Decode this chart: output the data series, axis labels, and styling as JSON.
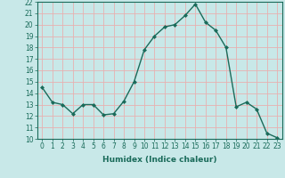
{
  "x": [
    0,
    1,
    2,
    3,
    4,
    5,
    6,
    7,
    8,
    9,
    10,
    11,
    12,
    13,
    14,
    15,
    16,
    17,
    18,
    19,
    20,
    21,
    22,
    23
  ],
  "y": [
    14.5,
    13.2,
    13.0,
    12.2,
    13.0,
    13.0,
    12.1,
    12.2,
    13.3,
    15.0,
    17.8,
    19.0,
    19.8,
    20.0,
    20.8,
    21.8,
    20.2,
    19.5,
    18.0,
    12.8,
    13.2,
    12.6,
    10.5,
    10.1
  ],
  "line_color": "#1a6b5a",
  "marker": "D",
  "marker_size": 2.0,
  "bg_color": "#c8e8e8",
  "grid_color": "#e8b0b0",
  "xlabel": "Humidex (Indice chaleur)",
  "ylim": [
    10,
    22
  ],
  "xlim": [
    -0.5,
    23.5
  ],
  "yticks": [
    10,
    11,
    12,
    13,
    14,
    15,
    16,
    17,
    18,
    19,
    20,
    21,
    22
  ],
  "xticks": [
    0,
    1,
    2,
    3,
    4,
    5,
    6,
    7,
    8,
    9,
    10,
    11,
    12,
    13,
    14,
    15,
    16,
    17,
    18,
    19,
    20,
    21,
    22,
    23
  ],
  "tick_fontsize": 5.5,
  "xlabel_fontsize": 6.5,
  "linewidth": 1.0
}
